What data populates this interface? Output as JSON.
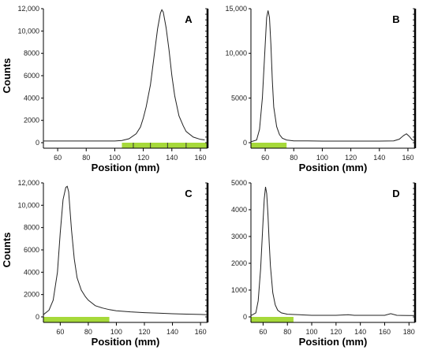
{
  "chart_data": [
    {
      "type": "line",
      "panel_label": "A",
      "xlabel": "Position (mm)",
      "ylabel": "Counts",
      "xlim": [
        50,
        165
      ],
      "ylim": [
        0,
        12000
      ],
      "xticks": [
        60,
        80,
        100,
        120,
        140,
        160
      ],
      "yticks": [
        0,
        2000,
        4000,
        6000,
        8000,
        10000,
        12000
      ],
      "ytick_labels": [
        "0",
        "2000",
        "4000",
        "6000",
        "8000",
        "10,000",
        "12,000"
      ],
      "highlight_range": [
        105,
        165
      ],
      "highlight_color": "#a6d93a",
      "highlight_dividers": [
        113,
        125,
        137,
        150
      ],
      "series": [
        {
          "x": [
            50,
            60,
            70,
            80,
            90,
            100,
            105,
            110,
            115,
            118,
            120,
            122,
            125,
            128,
            130,
            132,
            133,
            134,
            136,
            138,
            140,
            142,
            145,
            148,
            150,
            155,
            160,
            163
          ],
          "y": [
            150,
            150,
            150,
            150,
            150,
            150,
            200,
            350,
            800,
            1400,
            2200,
            3200,
            5200,
            8200,
            10200,
            11600,
            11900,
            11700,
            10300,
            8300,
            6000,
            4200,
            2400,
            1500,
            1000,
            500,
            300,
            250
          ]
        }
      ]
    },
    {
      "type": "line",
      "panel_label": "B",
      "xlabel": "Position (mm)",
      "ylabel": "",
      "xlim": [
        50,
        165
      ],
      "ylim": [
        0,
        15000
      ],
      "xticks": [
        60,
        80,
        100,
        120,
        140,
        160
      ],
      "yticks": [
        0,
        5000,
        10000,
        15000
      ],
      "ytick_labels": [
        "0",
        "5000",
        "10,000",
        "15,000"
      ],
      "highlight_range": [
        50,
        75
      ],
      "highlight_color": "#a6d93a",
      "highlight_dividers": [],
      "series": [
        {
          "x": [
            50,
            54,
            56,
            58,
            60,
            61,
            62,
            63,
            64,
            65,
            66,
            68,
            70,
            72,
            75,
            80,
            90,
            100,
            110,
            120,
            130,
            140,
            150,
            154,
            157,
            159,
            161,
            163,
            165
          ],
          "y": [
            100,
            300,
            1500,
            5000,
            11000,
            14000,
            14800,
            14000,
            11000,
            7000,
            4000,
            1800,
            900,
            500,
            300,
            200,
            200,
            180,
            180,
            180,
            180,
            180,
            200,
            400,
            800,
            1000,
            700,
            300,
            200
          ]
        }
      ]
    },
    {
      "type": "line",
      "panel_label": "C",
      "xlabel": "Position (mm)",
      "ylabel": "Counts",
      "xlim": [
        48,
        165
      ],
      "ylim": [
        0,
        12000
      ],
      "xticks": [
        60,
        80,
        100,
        120,
        140,
        160
      ],
      "yticks": [
        0,
        2000,
        4000,
        6000,
        8000,
        10000,
        12000
      ],
      "ytick_labels": [
        "0",
        "2000",
        "4000",
        "6000",
        "8000",
        "10,000",
        "12,000"
      ],
      "highlight_range": [
        48,
        95
      ],
      "highlight_color": "#a6d93a",
      "highlight_dividers": [],
      "series": [
        {
          "x": [
            48,
            52,
            55,
            58,
            60,
            62,
            64,
            65,
            66,
            67,
            68,
            70,
            72,
            75,
            78,
            80,
            85,
            90,
            95,
            100,
            110,
            120,
            130,
            140,
            150,
            160,
            165
          ],
          "y": [
            200,
            600,
            1500,
            4000,
            7500,
            10500,
            11600,
            11700,
            11200,
            9500,
            7800,
            5200,
            3500,
            2400,
            1800,
            1500,
            1000,
            800,
            650,
            550,
            450,
            380,
            330,
            280,
            250,
            220,
            200
          ]
        }
      ]
    },
    {
      "type": "line",
      "panel_label": "D",
      "xlabel": "Position (mm)",
      "ylabel": "",
      "xlim": [
        50,
        185
      ],
      "ylim": [
        0,
        5000
      ],
      "xticks": [
        60,
        80,
        100,
        120,
        140,
        160,
        180
      ],
      "yticks": [
        0,
        1000,
        2000,
        3000,
        4000,
        5000
      ],
      "ytick_labels": [
        "0",
        "1000",
        "2000",
        "3000",
        "4000",
        "5000"
      ],
      "highlight_range": [
        50,
        85
      ],
      "highlight_color": "#a6d93a",
      "highlight_dividers": [],
      "series": [
        {
          "x": [
            50,
            54,
            56,
            58,
            60,
            61,
            62,
            63,
            64,
            65,
            66,
            68,
            70,
            72,
            75,
            80,
            90,
            100,
            110,
            120,
            130,
            135,
            140,
            150,
            160,
            165,
            170,
            180,
            185
          ],
          "y": [
            50,
            150,
            600,
            1800,
            3600,
            4400,
            4850,
            4600,
            3800,
            2800,
            1900,
            900,
            450,
            250,
            150,
            100,
            80,
            60,
            60,
            60,
            80,
            60,
            60,
            60,
            60,
            120,
            60,
            50,
            50
          ]
        }
      ]
    }
  ]
}
